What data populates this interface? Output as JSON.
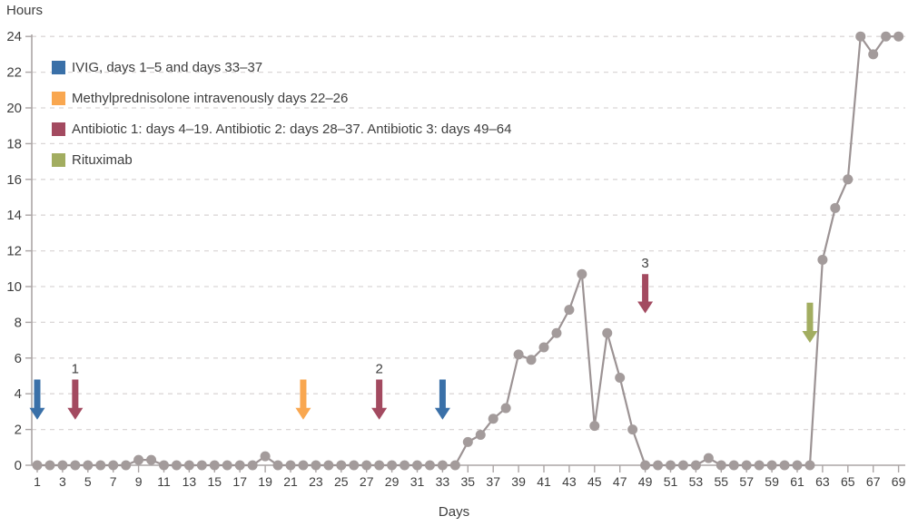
{
  "chart_data": {
    "type": "line",
    "title": "",
    "ylabel": "Hours",
    "xlabel": "Days",
    "ylim": [
      0,
      24
    ],
    "y_ticks": [
      0,
      2,
      4,
      6,
      8,
      10,
      12,
      14,
      16,
      18,
      20,
      22,
      24
    ],
    "x_ticks": [
      1,
      3,
      5,
      7,
      9,
      11,
      13,
      15,
      17,
      19,
      21,
      23,
      25,
      27,
      29,
      31,
      33,
      35,
      37,
      39,
      41,
      43,
      45,
      47,
      49,
      51,
      53,
      55,
      57,
      59,
      61,
      63,
      65,
      67,
      69
    ],
    "grid": "horizontal-dashed",
    "legend_position": "top-left-inside",
    "x": [
      1,
      2,
      3,
      4,
      5,
      6,
      7,
      8,
      9,
      10,
      11,
      12,
      13,
      14,
      15,
      16,
      17,
      18,
      19,
      20,
      21,
      22,
      23,
      24,
      25,
      26,
      27,
      28,
      29,
      30,
      31,
      32,
      33,
      34,
      35,
      36,
      37,
      38,
      39,
      40,
      41,
      42,
      43,
      44,
      45,
      46,
      47,
      48,
      49,
      50,
      51,
      52,
      53,
      54,
      55,
      56,
      57,
      58,
      59,
      60,
      61,
      62,
      63,
      64,
      65,
      66,
      67,
      68,
      69
    ],
    "values": [
      0,
      0,
      0,
      0,
      0,
      0,
      0,
      0,
      0.3,
      0.3,
      0,
      0,
      0,
      0,
      0,
      0,
      0,
      0,
      0.5,
      0,
      0,
      0,
      0,
      0,
      0,
      0,
      0,
      0,
      0,
      0,
      0,
      0,
      0,
      0,
      1.3,
      1.7,
      2.6,
      3.2,
      6.2,
      5.9,
      6.6,
      7.4,
      8.7,
      10.7,
      2.2,
      7.4,
      4.9,
      2.0,
      0,
      0,
      0,
      0,
      0,
      0.4,
      0,
      0,
      0,
      0,
      0,
      0,
      0,
      0,
      11.5,
      14.4,
      16,
      24,
      23,
      24,
      24
    ],
    "legend": [
      {
        "name": "legend-ivig",
        "swatch_color": "#3A70A8",
        "label": "IVIG, days 1–5 and days 33–37"
      },
      {
        "name": "legend-methylprednisolone",
        "swatch_color": "#F9A750",
        "label": "Methylprednisolone intravenously days 22–26"
      },
      {
        "name": "legend-antibiotics",
        "swatch_color": "#A34A60",
        "label": "Antibiotic 1: days 4–19. Antibiotic 2: days 28–37. Antibiotic 3: days 49–64"
      },
      {
        "name": "legend-rituximab",
        "swatch_color": "#A2AD60",
        "label": "Rituximab"
      }
    ],
    "annotations": [
      {
        "name": "ivig-arrow-day-1",
        "day": 1,
        "label": "",
        "color": "#3A70A8",
        "y_from": 4.8,
        "y_to": 2.55
      },
      {
        "name": "antibiotic1-arrow-day-4",
        "day": 4,
        "label": "1",
        "color": "#A34A60",
        "y_from": 4.8,
        "y_to": 2.55
      },
      {
        "name": "methylprednisolone-arrow-day-22",
        "day": 22,
        "label": "",
        "color": "#F9A750",
        "y_from": 4.8,
        "y_to": 2.55
      },
      {
        "name": "antibiotic2-arrow-day-28",
        "day": 28,
        "label": "2",
        "color": "#A34A60",
        "y_from": 4.8,
        "y_to": 2.55
      },
      {
        "name": "ivig-arrow-day-33",
        "day": 33,
        "label": "",
        "color": "#3A70A8",
        "y_from": 4.8,
        "y_to": 2.55
      },
      {
        "name": "antibiotic3-arrow-day-49",
        "day": 49,
        "label": "3",
        "color": "#A34A60",
        "y_from": 10.7,
        "y_to": 8.5
      },
      {
        "name": "rituximab-arrow-day-62",
        "day": 62,
        "label": "",
        "color": "#A2AD60",
        "y_from": 9.1,
        "y_to": 6.85
      }
    ],
    "style": {
      "line_color": "#9C9394",
      "marker_color": "#A39B9B",
      "grid_color": "#DBD7D7",
      "axis_color": "#ABA5A5",
      "text_color": "#3E3E3E"
    }
  }
}
